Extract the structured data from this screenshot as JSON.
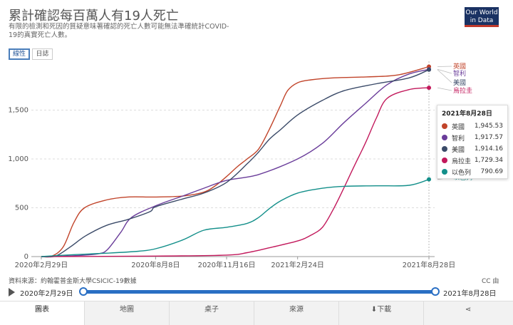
{
  "header": {
    "title": "累計確認每百萬人有19人死亡",
    "subtitle": "有限的檢測和死因的質疑意味著確認的死亡人數可能無法準確統計COVID-19的真實死亡人數。",
    "logo_line1": "Our World",
    "logo_line2": "in Data"
  },
  "toggles": {
    "linear": "線性",
    "log": "日誌"
  },
  "chart_data": {
    "type": "line",
    "xlabel": "",
    "ylabel": "",
    "ylim": [
      0,
      2000
    ],
    "yticks": [
      0,
      500,
      1000,
      1500
    ],
    "ytick_labels": [
      "0",
      "500",
      "1,000",
      "1,500"
    ],
    "xlim": [
      "2020-02-15",
      "2021-09-05"
    ],
    "xticks": [
      "2020-02-29",
      "2020-08-08",
      "2020-11-16",
      "2021-02-24",
      "2021-08-28"
    ],
    "xtick_labels": [
      "2020年2月29日",
      "2020年8月8日",
      "2020年11月16日",
      "2021年2月24日",
      "2021年8月28日"
    ],
    "series": [
      {
        "name": "英國",
        "color": "#c1442a",
        "x": [
          "2020-02-29",
          "2020-03-15",
          "2020-03-31",
          "2020-04-15",
          "2020-04-30",
          "2020-05-31",
          "2020-06-30",
          "2020-08-08",
          "2020-09-15",
          "2020-10-15",
          "2020-11-01",
          "2020-11-16",
          "2020-12-01",
          "2020-12-15",
          "2020-12-31",
          "2021-01-15",
          "2021-01-31",
          "2021-02-10",
          "2021-02-24",
          "2021-03-15",
          "2021-04-15",
          "2021-06-01",
          "2021-07-15",
          "2021-08-28"
        ],
        "y": [
          0,
          5,
          100,
          350,
          500,
          580,
          610,
          610,
          620,
          660,
          730,
          820,
          920,
          1000,
          1100,
          1300,
          1550,
          1700,
          1780,
          1810,
          1830,
          1840,
          1860,
          1945.53
        ]
      },
      {
        "name": "智利",
        "color": "#6a3d9a",
        "x": [
          "2020-02-29",
          "2020-04-01",
          "2020-05-01",
          "2020-05-20",
          "2020-06-01",
          "2020-06-20",
          "2020-07-05",
          "2020-08-08",
          "2020-09-15",
          "2020-10-15",
          "2020-11-16",
          "2020-12-31",
          "2021-02-24",
          "2021-03-31",
          "2021-04-30",
          "2021-05-31",
          "2021-06-30",
          "2021-07-31",
          "2021-08-28"
        ],
        "y": [
          0,
          5,
          15,
          30,
          70,
          250,
          400,
          520,
          620,
          700,
          780,
          840,
          1000,
          1160,
          1370,
          1570,
          1760,
          1870,
          1917.57
        ]
      },
      {
        "name": "美國",
        "color": "#3a4a68",
        "x": [
          "2020-02-29",
          "2020-03-20",
          "2020-04-10",
          "2020-05-01",
          "2020-05-31",
          "2020-06-30",
          "2020-07-31",
          "2020-08-08",
          "2020-09-15",
          "2020-10-15",
          "2020-11-16",
          "2020-12-15",
          "2020-12-31",
          "2021-01-15",
          "2021-01-31",
          "2021-02-24",
          "2021-03-31",
          "2021-05-01",
          "2021-06-15",
          "2021-07-31",
          "2021-08-28"
        ],
        "y": [
          0,
          5,
          100,
          210,
          320,
          380,
          460,
          510,
          590,
          650,
          760,
          950,
          1070,
          1200,
          1300,
          1450,
          1600,
          1700,
          1770,
          1830,
          1914.16
        ]
      },
      {
        "name": "烏拉圭",
        "color": "#c2185b",
        "x": [
          "2020-02-29",
          "2020-08-08",
          "2020-11-16",
          "2020-12-15",
          "2021-01-15",
          "2021-02-24",
          "2021-03-15",
          "2021-03-31",
          "2021-04-15",
          "2021-04-30",
          "2021-05-15",
          "2021-05-31",
          "2021-06-15",
          "2021-06-30",
          "2021-07-31",
          "2021-08-28"
        ],
        "y": [
          0,
          5,
          15,
          40,
          90,
          160,
          220,
          300,
          480,
          700,
          930,
          1170,
          1420,
          1620,
          1710,
          1729.34
        ]
      },
      {
        "name": "以色列",
        "color": "#138f8a",
        "x": [
          "2020-02-29",
          "2020-04-15",
          "2020-06-01",
          "2020-07-15",
          "2020-08-08",
          "2020-09-15",
          "2020-10-15",
          "2020-11-16",
          "2020-12-15",
          "2020-12-31",
          "2021-01-15",
          "2021-01-31",
          "2021-02-24",
          "2021-03-31",
          "2021-05-01",
          "2021-06-15",
          "2021-07-31",
          "2021-08-28"
        ],
        "y": [
          0,
          20,
          35,
          55,
          80,
          170,
          270,
          300,
          340,
          400,
          490,
          570,
          650,
          700,
          720,
          725,
          730,
          790.69
        ]
      }
    ]
  },
  "tooltip": {
    "date": "2021年8月28日",
    "rows": [
      {
        "name": "英國",
        "value": "1,945.53",
        "color": "#c1442a"
      },
      {
        "name": "智利",
        "value": "1,917.57",
        "color": "#6a3d9a"
      },
      {
        "name": "美國",
        "value": "1,914.16",
        "color": "#3a4a68"
      },
      {
        "name": "烏拉圭",
        "value": "1,729.34",
        "color": "#c2185b"
      },
      {
        "name": "以色列",
        "value": "790.69",
        "color": "#138f8a"
      }
    ]
  },
  "source": "資料來源：約翰霍普金斯大學CSICIC-19數據",
  "license": "CC 由",
  "timeline": {
    "start": "2020年2月29日",
    "end": "2021年8月28日"
  },
  "tabs": {
    "chart": "圖表",
    "map": "地圖",
    "table": "桌子",
    "sources": "來源",
    "download": "下載"
  }
}
